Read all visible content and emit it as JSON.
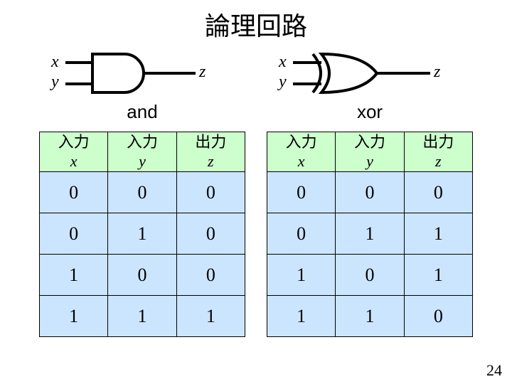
{
  "title": "論理回路",
  "labels": {
    "x": "x",
    "y": "y",
    "z": "z"
  },
  "gates": {
    "and": {
      "name": "and"
    },
    "xor": {
      "name": "xor"
    }
  },
  "and_table": {
    "headers": [
      {
        "top": "入力",
        "var": "x"
      },
      {
        "top": "入力",
        "var": "y"
      },
      {
        "top": "出力",
        "var": "z"
      }
    ],
    "header_bg": "#ccffcc",
    "row_bg": "#cce5ff",
    "rows": [
      [
        "0",
        "0",
        "0"
      ],
      [
        "0",
        "1",
        "0"
      ],
      [
        "1",
        "0",
        "0"
      ],
      [
        "1",
        "1",
        "1"
      ]
    ]
  },
  "xor_table": {
    "headers": [
      {
        "top": "入力",
        "var": "x"
      },
      {
        "top": "入力",
        "var": "y"
      },
      {
        "top": "出力",
        "var": "z"
      }
    ],
    "header_bg": "#ccffcc",
    "row_bg": "#cce5ff",
    "rows": [
      [
        "0",
        "0",
        "0"
      ],
      [
        "0",
        "1",
        "1"
      ],
      [
        "1",
        "0",
        "1"
      ],
      [
        "1",
        "1",
        "0"
      ]
    ]
  },
  "page_number": "24",
  "stroke_color": "#000000",
  "stroke_width": 4
}
